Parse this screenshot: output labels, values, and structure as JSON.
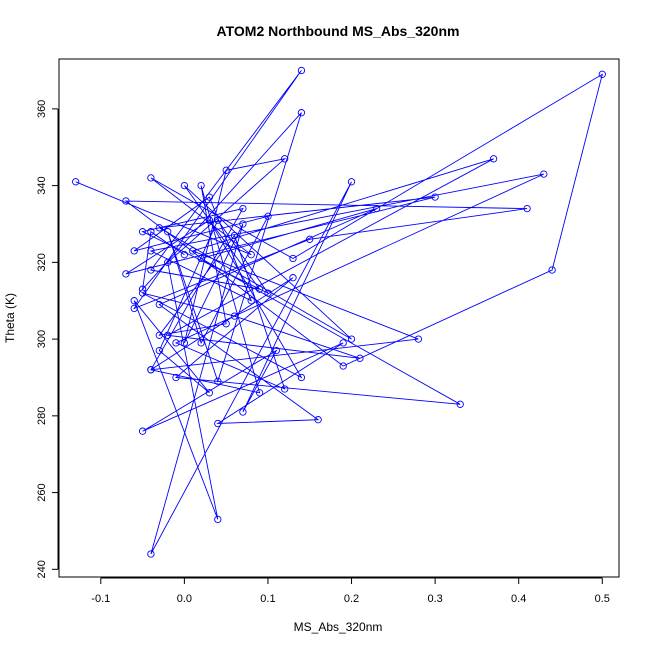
{
  "chart_data": {
    "type": "scatter",
    "title": "ATOM2 Northbound MS_Abs_320nm",
    "xlabel": "MS_Abs_320nm",
    "ylabel": "Theta (K)",
    "xlim": [
      -0.15,
      0.52
    ],
    "ylim": [
      238,
      373
    ],
    "xticks": [
      -0.1,
      0.0,
      0.1,
      0.2,
      0.3,
      0.4,
      0.5
    ],
    "xtick_labels": [
      "-0.1",
      "0.0",
      "0.1",
      "0.2",
      "0.3",
      "0.4",
      "0.5"
    ],
    "yticks": [
      240,
      260,
      280,
      300,
      320,
      340,
      360
    ],
    "ytick_labels": [
      "240",
      "260",
      "280",
      "300",
      "320",
      "340",
      "360"
    ],
    "grid": false,
    "series": [
      {
        "color": "#0000ff",
        "marker": "open-circle",
        "connected": true,
        "x": [
          -0.13,
          0.08,
          -0.04,
          0.13,
          0.5,
          0.44,
          0.19,
          -0.07,
          0.41,
          0.15,
          -0.06,
          0.14,
          -0.04,
          0.09,
          0.0,
          0.2,
          -0.03,
          0.3,
          -0.07,
          0.03,
          0.14,
          -0.05,
          0.06,
          0.21,
          -0.02,
          0.37,
          0.01,
          0.28,
          -0.04,
          0.13,
          -0.01,
          0.33,
          0.02,
          0.23,
          -0.03,
          0.16,
          0.04,
          0.19,
          -0.05,
          0.11,
          0.07,
          0.2,
          -0.04,
          0.07,
          0.0,
          0.05,
          0.12,
          -0.02,
          0.04,
          -0.06,
          0.03,
          -0.03,
          0.04,
          0.1,
          -0.05,
          0.07,
          -0.04,
          0.09,
          0.02,
          0.05,
          -0.03,
          0.06,
          0.12,
          -0.01,
          0.43,
          -0.04,
          0.08,
          0.03,
          -0.06,
          0.1,
          0.02,
          -0.02,
          0.04,
          0.14,
          -0.05,
          -0.04,
          0.0
        ],
        "y": [
          341,
          322,
          342,
          321,
          369,
          318,
          293,
          336,
          334,
          326,
          308,
          370,
          318,
          313,
          340,
          300,
          329,
          337,
          317,
          331,
          290,
          312,
          306,
          295,
          301,
          347,
          323,
          300,
          292,
          316,
          290,
          283,
          321,
          334,
          309,
          279,
          278,
          299,
          276,
          297,
          281,
          341,
          244,
          330,
          299,
          344,
          347,
          320,
          253,
          310,
          286,
          297,
          331,
          312,
          328,
          334,
          292,
          286,
          340,
          304,
          301,
          327,
          287,
          299,
          343,
          323,
          310,
          337,
          323,
          332,
          299,
          328,
          289,
          359,
          313,
          328,
          322
        ]
      }
    ]
  }
}
